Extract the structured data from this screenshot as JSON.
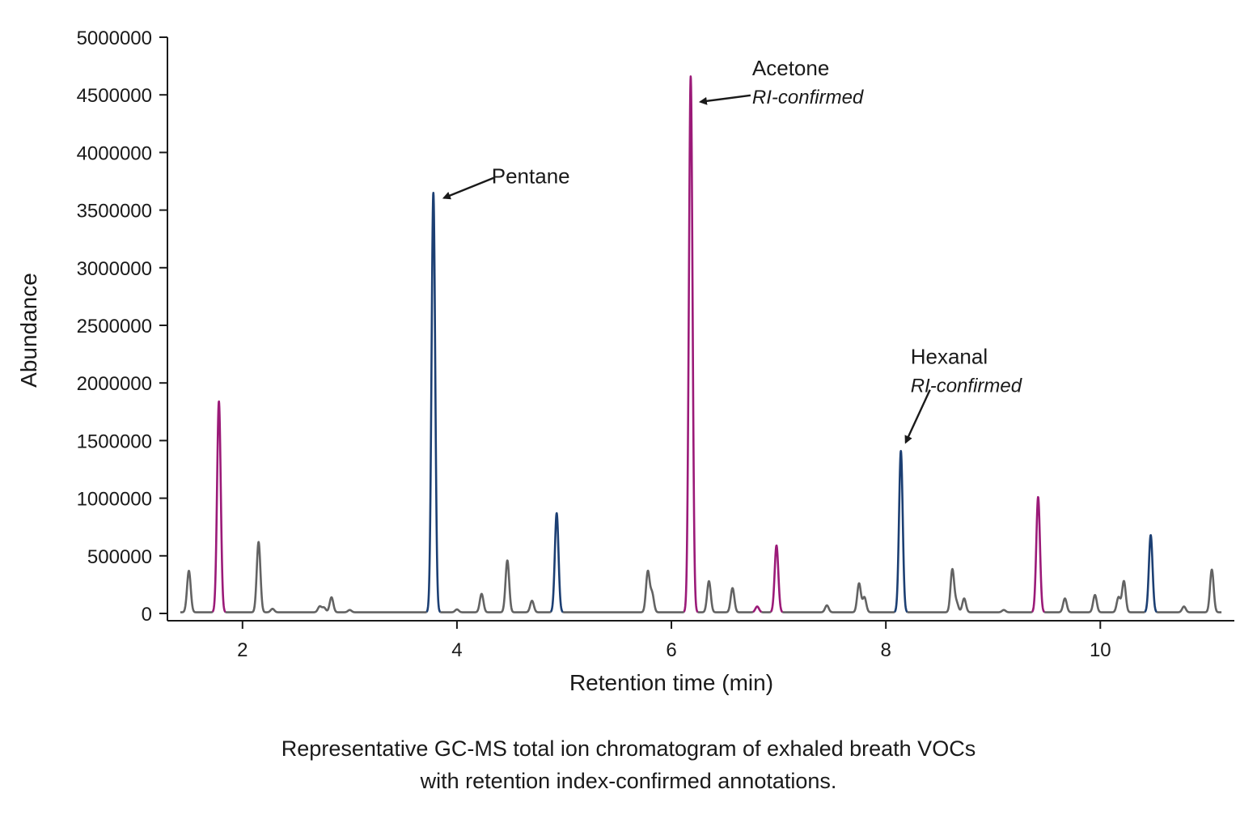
{
  "chart_data": {
    "type": "line",
    "xlabel": "Retention time (min)",
    "ylabel": "Abundance",
    "xlim": [
      1.3,
      11.25
    ],
    "ylim": [
      0,
      5000000
    ],
    "xticks": [
      2,
      4,
      6,
      8,
      10
    ],
    "yticks": [
      0,
      500000,
      1000000,
      1500000,
      2000000,
      2500000,
      3000000,
      3500000,
      4000000,
      4500000,
      5000000
    ],
    "grid": false,
    "baseline": 10000,
    "colors": {
      "magenta": "#9b1a78",
      "blue": "#1c3f73",
      "gray": "#636363"
    },
    "peaks": [
      {
        "rt": 1.5,
        "height": 360000,
        "color": "gray"
      },
      {
        "rt": 1.78,
        "height": 1830000,
        "color": "magenta"
      },
      {
        "rt": 2.15,
        "height": 610000,
        "color": "gray"
      },
      {
        "rt": 2.28,
        "height": 30000,
        "color": "gray"
      },
      {
        "rt": 2.72,
        "height": 50000,
        "color": "gray"
      },
      {
        "rt": 2.76,
        "height": 40000,
        "color": "gray"
      },
      {
        "rt": 2.83,
        "height": 130000,
        "color": "gray"
      },
      {
        "rt": 3.0,
        "height": 20000,
        "color": "gray"
      },
      {
        "rt": 3.78,
        "height": 3640000,
        "color": "blue"
      },
      {
        "rt": 4.0,
        "height": 25000,
        "color": "gray"
      },
      {
        "rt": 4.23,
        "height": 160000,
        "color": "gray"
      },
      {
        "rt": 4.47,
        "height": 450000,
        "color": "gray"
      },
      {
        "rt": 4.7,
        "height": 100000,
        "color": "gray"
      },
      {
        "rt": 4.93,
        "height": 860000,
        "color": "blue"
      },
      {
        "rt": 5.78,
        "height": 350000,
        "color": "gray"
      },
      {
        "rt": 5.82,
        "height": 160000,
        "color": "gray"
      },
      {
        "rt": 6.18,
        "height": 4650000,
        "color": "magenta"
      },
      {
        "rt": 6.35,
        "height": 270000,
        "color": "gray"
      },
      {
        "rt": 6.57,
        "height": 210000,
        "color": "gray"
      },
      {
        "rt": 6.8,
        "height": 50000,
        "color": "magenta"
      },
      {
        "rt": 6.98,
        "height": 580000,
        "color": "magenta"
      },
      {
        "rt": 7.45,
        "height": 60000,
        "color": "gray"
      },
      {
        "rt": 7.75,
        "height": 250000,
        "color": "gray"
      },
      {
        "rt": 7.8,
        "height": 130000,
        "color": "gray"
      },
      {
        "rt": 8.14,
        "height": 1400000,
        "color": "blue"
      },
      {
        "rt": 8.62,
        "height": 370000,
        "color": "gray"
      },
      {
        "rt": 8.66,
        "height": 80000,
        "color": "gray"
      },
      {
        "rt": 8.73,
        "height": 120000,
        "color": "gray"
      },
      {
        "rt": 9.1,
        "height": 20000,
        "color": "gray"
      },
      {
        "rt": 9.42,
        "height": 1000000,
        "color": "magenta"
      },
      {
        "rt": 9.67,
        "height": 120000,
        "color": "gray"
      },
      {
        "rt": 9.95,
        "height": 150000,
        "color": "gray"
      },
      {
        "rt": 10.17,
        "height": 130000,
        "color": "gray"
      },
      {
        "rt": 10.22,
        "height": 270000,
        "color": "gray"
      },
      {
        "rt": 10.47,
        "height": 670000,
        "color": "blue"
      },
      {
        "rt": 10.78,
        "height": 50000,
        "color": "gray"
      },
      {
        "rt": 11.04,
        "height": 370000,
        "color": "gray"
      }
    ],
    "annotations": [
      {
        "label": "Pentane",
        "note": "",
        "rt": 3.78,
        "abundance": 3640000
      },
      {
        "label": "Acetone",
        "note": "RI-confirmed",
        "rt": 6.18,
        "abundance": 4650000
      },
      {
        "label": "Hexanal",
        "note": "RI-confirmed",
        "rt": 8.14,
        "abundance": 1400000
      }
    ]
  },
  "caption": {
    "line1": "Representative GC-MS total ion chromatogram of exhaled breath VOCs",
    "line2": "with retention index-confirmed annotations."
  }
}
